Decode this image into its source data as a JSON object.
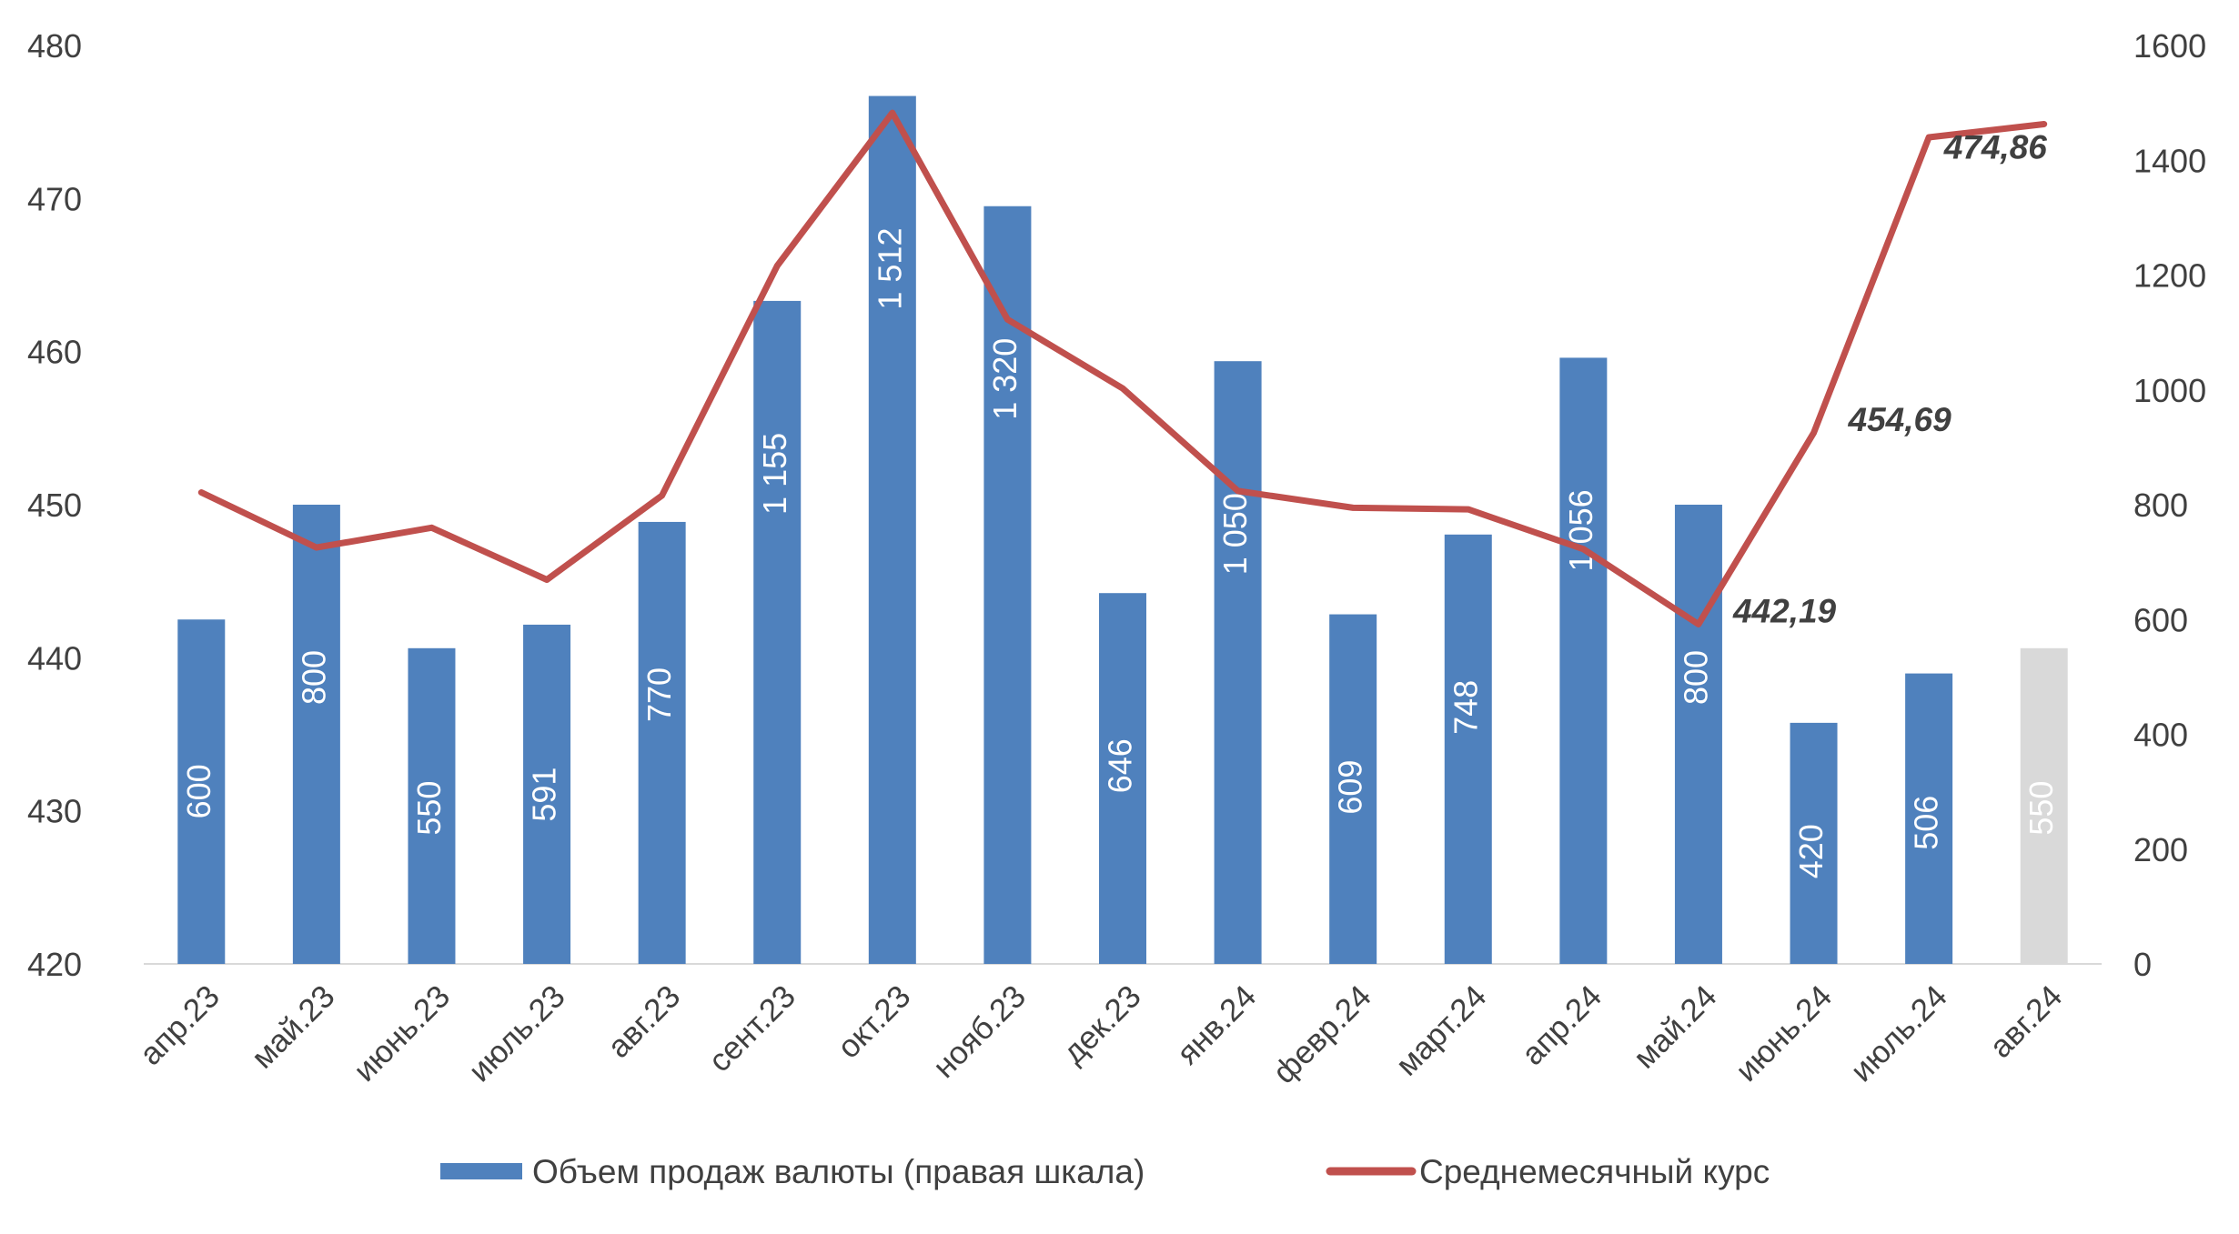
{
  "chart_data": {
    "type": "bar+line",
    "title": "",
    "categories": [
      "апр.23",
      "май.23",
      "июнь.23",
      "июль.23",
      "авг.23",
      "сент.23",
      "окт.23",
      "нояб.23",
      "дек.23",
      "янв.24",
      "февр.24",
      "март.24",
      "апр.24",
      "май.24",
      "июнь.24",
      "июль.24",
      "авг.24"
    ],
    "series": [
      {
        "name": "Объем продаж валюты (правая шкала)",
        "type": "bar",
        "axis": "right",
        "color": "#4F81BD",
        "highlight_color": "#D9D9D9",
        "highlight_index": 16,
        "values": [
          600,
          800,
          550,
          591,
          770,
          1155,
          1512,
          1320,
          646,
          1050,
          609,
          748,
          1056,
          800,
          420,
          506,
          550
        ],
        "value_labels": [
          "600",
          "800",
          "550",
          "591",
          "770",
          "1 155",
          "1 512",
          "1 320",
          "646",
          "1 050",
          "609",
          "748",
          "1 056",
          "800",
          "420",
          "506",
          "550"
        ]
      },
      {
        "name": "Среднемесячный курс",
        "type": "line",
        "axis": "left",
        "color": "#C0504D",
        "values": [
          450.8,
          447.2,
          448.5,
          445.1,
          450.6,
          465.6,
          475.6,
          462.1,
          457.6,
          450.9,
          449.8,
          449.7,
          447.1,
          442.19,
          454.69,
          474.0,
          474.86
        ],
        "labels": [
          {
            "index": 13,
            "text": "442,19"
          },
          {
            "index": 14,
            "text": "454,69"
          },
          {
            "index": 16,
            "text": "474,86"
          }
        ]
      }
    ],
    "y_left": {
      "min": 420,
      "max": 480,
      "step": 10,
      "ticks": [
        "420",
        "430",
        "440",
        "450",
        "460",
        "470",
        "480"
      ]
    },
    "y_right": {
      "min": 0,
      "max": 1600,
      "step": 200,
      "ticks": [
        "0",
        "200",
        "400",
        "600",
        "800",
        "1000",
        "1200",
        "1400",
        "1600"
      ]
    },
    "legend_position": "bottom",
    "grid": false
  }
}
